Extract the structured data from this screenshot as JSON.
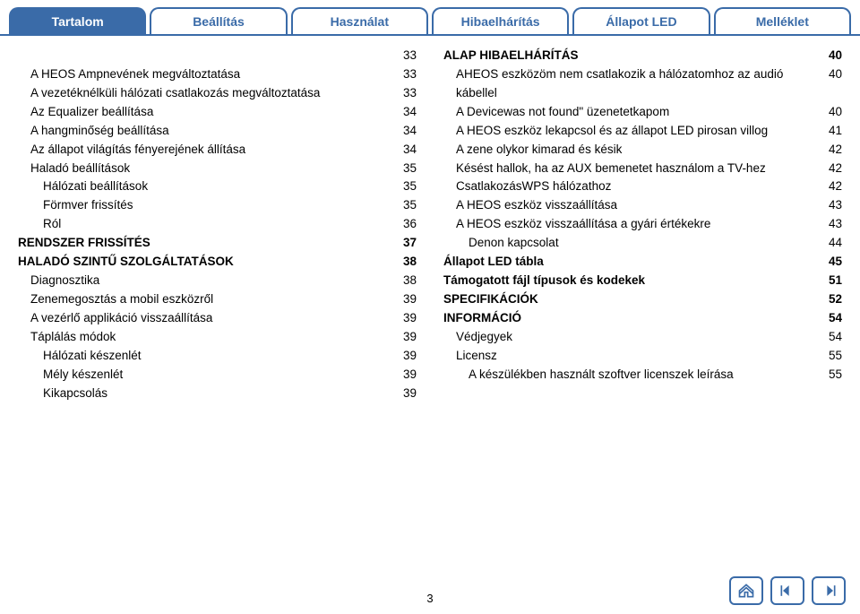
{
  "tabs": [
    {
      "label": "Tartalom",
      "active": true
    },
    {
      "label": "Beállítás",
      "active": false
    },
    {
      "label": "Használat",
      "active": false
    },
    {
      "label": "Hibaelhárítás",
      "active": false
    },
    {
      "label": "Állapot LED",
      "active": false
    },
    {
      "label": "Melléklet",
      "active": false
    }
  ],
  "left": [
    {
      "label": "",
      "page": "33",
      "lvl": 2
    },
    {
      "label": "A HEOS Ampnevének megváltoztatása",
      "page": "33",
      "lvl": 1
    },
    {
      "label": "A vezetéknélküli hálózati csatlakozás megváltoztatása",
      "page": "33",
      "lvl": 1
    },
    {
      "label": "Az Equalizer beállítása",
      "page": "34",
      "lvl": 1
    },
    {
      "label": "A hangminőség beállítása",
      "page": "34",
      "lvl": 1
    },
    {
      "label": "Az állapot világítás fényerejének állítása",
      "page": "34",
      "lvl": 1
    },
    {
      "label": "Haladó beállítások",
      "page": "35",
      "lvl": 1
    },
    {
      "label": "Hálózati beállítások",
      "page": "35",
      "lvl": 2
    },
    {
      "label": "Förmver frissítés",
      "page": "35",
      "lvl": 2
    },
    {
      "label": "Ról",
      "page": "36",
      "lvl": 2
    },
    {
      "label": "RENDSZER FRISSÍTÉS",
      "page": "37",
      "lvl": 0,
      "bold": true
    },
    {
      "label": "HALADÓ SZINTŰ SZOLGÁLTATÁSOK",
      "page": "38",
      "lvl": 0,
      "bold": true
    },
    {
      "label": "Diagnosztika",
      "page": "38",
      "lvl": 1
    },
    {
      "label": "Zenemegosztás a mobil eszközről",
      "page": "39",
      "lvl": 1
    },
    {
      "label": "A vezérlő applikáció visszaállítása",
      "page": "39",
      "lvl": 1
    },
    {
      "label": "Táplálás módok",
      "page": "39",
      "lvl": 1
    },
    {
      "label": "Hálózati készenlét",
      "page": "39",
      "lvl": 2
    },
    {
      "label": "Mély készenlét",
      "page": "39",
      "lvl": 2
    },
    {
      "label": "Kikapcsolás",
      "page": "39",
      "lvl": 2
    }
  ],
  "right": [
    {
      "label": "ALAP HIBAELHÁRÍTÁS",
      "page": "40",
      "lvl": 0,
      "bold": true
    },
    {
      "label": "AHEOS eszközöm nem csatlakozik a hálózatomhoz az audió kábellel",
      "page": "40",
      "lvl": 1
    },
    {
      "label": "A Devicewas not found\" üzenetetkapom",
      "page": "40",
      "lvl": 1
    },
    {
      "label": "A HEOS eszköz lekapcsol és az állapot LED pirosan villog",
      "page": "41",
      "lvl": 1
    },
    {
      "label": "A zene olykor kimarad és késik",
      "page": "42",
      "lvl": 1
    },
    {
      "label": "Késést hallok, ha az AUX bemenetet használom a TV-hez",
      "page": "42",
      "lvl": 1
    },
    {
      "label": "CsatlakozásWPS hálózathoz",
      "page": "42",
      "lvl": 1
    },
    {
      "label": "A HEOS eszköz visszaállítása",
      "page": "43",
      "lvl": 1
    },
    {
      "label": "A HEOS eszköz visszaállítása a gyári értékekre",
      "page": "43",
      "lvl": 1
    },
    {
      "label": "Denon kapcsolat",
      "page": "44",
      "lvl": 2
    },
    {
      "label": "Állapot LED tábla",
      "page": "45",
      "lvl": 0,
      "bold": true
    },
    {
      "label": "Támogatott fájl típusok és kodekek",
      "page": "51",
      "lvl": 0,
      "bold": true
    },
    {
      "label": "SPECIFIKÁCIÓK",
      "page": "52",
      "lvl": 0,
      "bold": true
    },
    {
      "label": "INFORMÁCIÓ",
      "page": "54",
      "lvl": 0,
      "bold": true
    },
    {
      "label": "Védjegyek",
      "page": "54",
      "lvl": 1
    },
    {
      "label": "Licensz",
      "page": "55",
      "lvl": 1
    },
    {
      "label": "A készülékben használt szoftver licenszek leírása",
      "page": "55",
      "lvl": 2
    }
  ],
  "pageNumber": "3",
  "colors": {
    "accent": "#3a6ba8"
  }
}
